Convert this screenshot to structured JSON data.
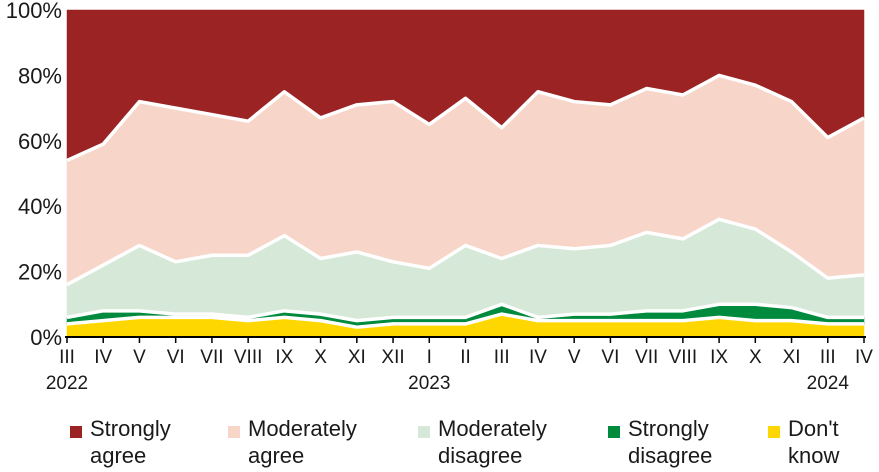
{
  "chart_data": {
    "type": "area",
    "stacked": true,
    "x": [
      "III",
      "IV",
      "V",
      "VI",
      "VII",
      "VIII",
      "IX",
      "X",
      "XI",
      "XII",
      "I",
      "II",
      "III",
      "IV",
      "V",
      "VI",
      "VII",
      "VIII",
      "IX",
      "X",
      "XI",
      "III",
      "IV"
    ],
    "year_labels": [
      {
        "index": 0,
        "label": "2022"
      },
      {
        "index": 10,
        "label": "2023"
      },
      {
        "index": 21,
        "label": "2024"
      }
    ],
    "yticks": [
      "0%",
      "20%",
      "40%",
      "60%",
      "80%",
      "100%"
    ],
    "ylim": [
      0,
      100
    ],
    "series": [
      {
        "name": "Don't\nknow",
        "color": "#ffd700",
        "values": [
          4,
          5,
          6,
          6,
          6,
          5,
          6,
          5,
          3,
          4,
          4,
          4,
          7,
          5,
          5,
          5,
          5,
          5,
          6,
          5,
          5,
          4,
          4
        ]
      },
      {
        "name": "Strongly\ndisagree",
        "color": "#008a3e",
        "values": [
          2,
          3,
          2,
          1,
          1,
          1,
          2,
          2,
          2,
          2,
          2,
          2,
          3,
          1,
          2,
          2,
          3,
          3,
          4,
          5,
          4,
          2,
          2
        ]
      },
      {
        "name": "Moderately\ndisagree",
        "color": "#d6e8d8",
        "values": [
          10,
          14,
          20,
          16,
          18,
          19,
          23,
          17,
          21,
          17,
          15,
          22,
          14,
          22,
          20,
          21,
          24,
          22,
          26,
          23,
          17,
          12,
          13
        ]
      },
      {
        "name": "Moderately\nagree",
        "color": "#f7d5c8",
        "values": [
          38,
          37,
          44,
          47,
          43,
          41,
          44,
          43,
          45,
          49,
          44,
          45,
          40,
          47,
          45,
          43,
          44,
          44,
          44,
          44,
          46,
          43,
          48
        ]
      },
      {
        "name": "Strongly\nagree",
        "color": "#9b2323",
        "values": [
          46,
          41,
          28,
          30,
          32,
          34,
          25,
          33,
          29,
          28,
          35,
          27,
          36,
          25,
          28,
          29,
          24,
          26,
          20,
          23,
          28,
          39,
          33
        ]
      }
    ],
    "legend": "bottom",
    "grid": false
  }
}
